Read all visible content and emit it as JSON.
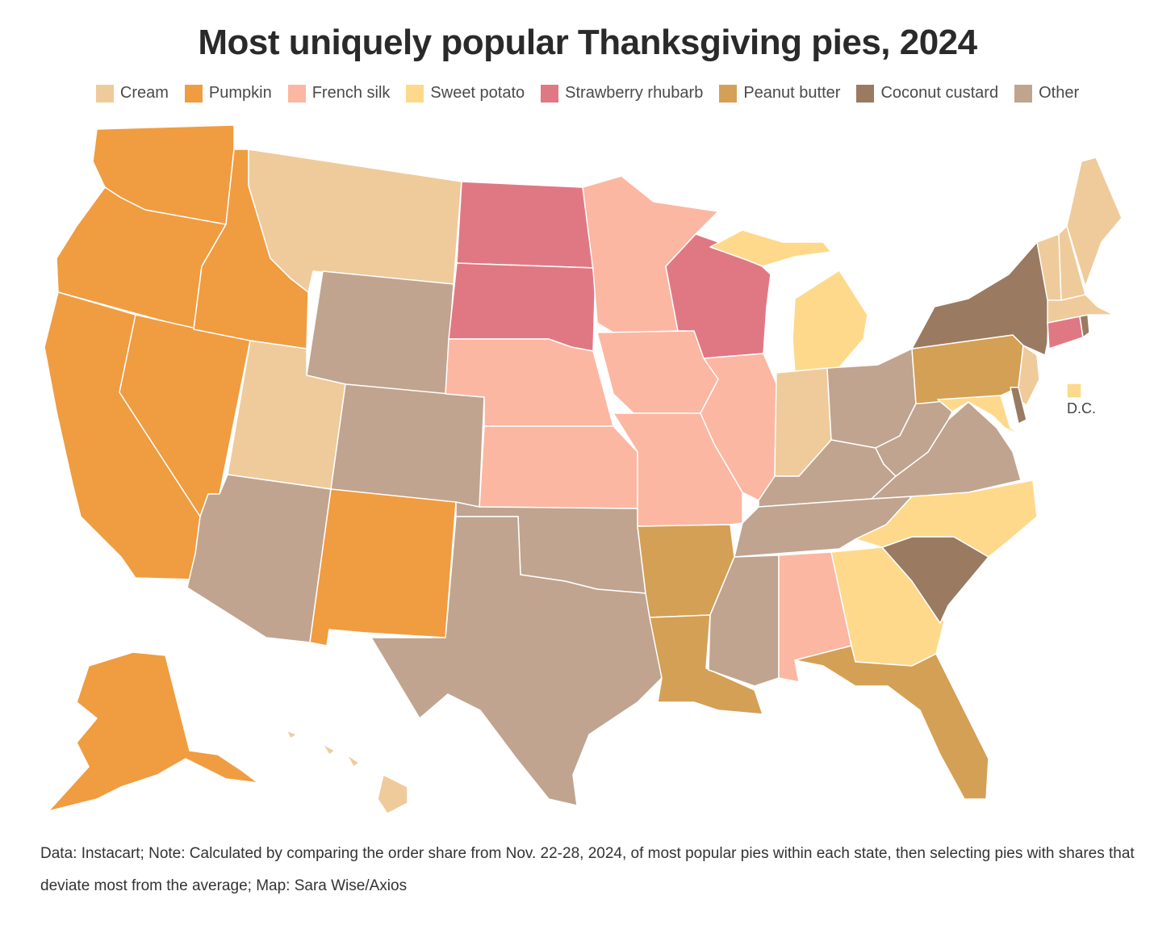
{
  "title": "Most uniquely popular Thanksgiving pies, 2024",
  "legend": [
    {
      "label": "Cream",
      "color": "#efcb9b"
    },
    {
      "label": "Pumpkin",
      "color": "#f09c41"
    },
    {
      "label": "French silk",
      "color": "#fbb7a2"
    },
    {
      "label": "Sweet potato",
      "color": "#fed98c"
    },
    {
      "label": "Strawberry rhubarb",
      "color": "#e07884"
    },
    {
      "label": "Peanut butter",
      "color": "#d4a055"
    },
    {
      "label": "Coconut custard",
      "color": "#9a7a61"
    },
    {
      "label": "Other",
      "color": "#c0a48f"
    }
  ],
  "states": {
    "WA": "Pumpkin",
    "OR": "Pumpkin",
    "CA": "Pumpkin",
    "NV": "Pumpkin",
    "ID": "Pumpkin",
    "NM": "Pumpkin",
    "AK": "Pumpkin",
    "MT": "Cream",
    "UT": "Cream",
    "IN": "Cream",
    "VT": "Cream",
    "NH": "Cream",
    "ME": "Cream",
    "MA": "Cream",
    "NJ": "Cream",
    "HI": "Cream",
    "MN": "French silk",
    "NE": "French silk",
    "KS": "French silk",
    "IA": "French silk",
    "MO": "French silk",
    "IL": "French silk",
    "AL": "French silk",
    "MI": "Sweet potato",
    "NC": "Sweet potato",
    "GA": "Sweet potato",
    "MD": "Sweet potato",
    "DC": "Sweet potato",
    "ND": "Strawberry rhubarb",
    "SD": "Strawberry rhubarb",
    "WI": "Strawberry rhubarb",
    "CT": "Strawberry rhubarb",
    "AR": "Peanut butter",
    "LA": "Peanut butter",
    "FL": "Peanut butter",
    "PA": "Peanut butter",
    "NY": "Coconut custard",
    "SC": "Coconut custard",
    "DE": "Coconut custard",
    "RI": "Coconut custard",
    "WY": "Other",
    "CO": "Other",
    "AZ": "Other",
    "TX": "Other",
    "OK": "Other",
    "MS": "Other",
    "TN": "Other",
    "KY": "Other",
    "OH": "Other",
    "WV": "Other",
    "VA": "Other"
  },
  "dc_label": "D.C.",
  "note": "Data: Instacart; Note: Calculated by comparing the order share from Nov. 22-28, 2024, of most popular pies within each state, then selecting pies with shares that deviate most from the average; Map: Sara Wise/Axios"
}
